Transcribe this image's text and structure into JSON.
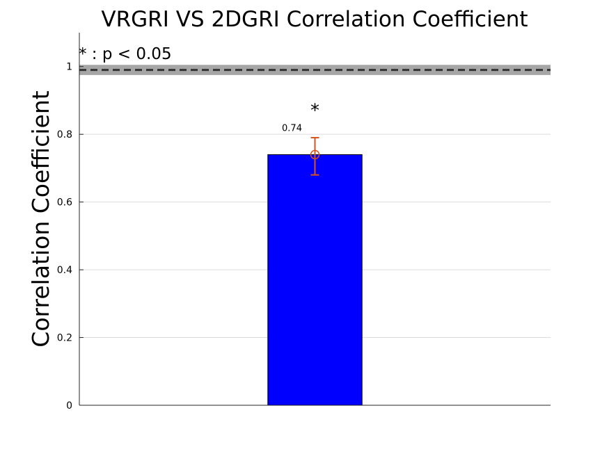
{
  "chart_data": {
    "type": "bar",
    "title": "VRGRI VS 2DGRI Correlation Coefficient",
    "xlabel": "",
    "ylabel": "Correlation Coefficient",
    "categories": [
      ""
    ],
    "values": [
      0.74
    ],
    "error_bars": [
      {
        "center": 0.74,
        "lower": 0.68,
        "upper": 0.79
      }
    ],
    "data_labels": [
      "0.74"
    ],
    "significance": [
      "*"
    ],
    "annotation": "* : p < 0.05",
    "reference_line": {
      "y": 0.99,
      "band": [
        0.975,
        1.005
      ],
      "style": "dashed"
    },
    "ylim": [
      0,
      1.1
    ],
    "yticks": [
      0,
      0.2,
      0.4,
      0.6,
      0.8,
      1
    ],
    "ytick_labels": [
      "0",
      "0.2",
      "0.4",
      "0.6",
      "0.8",
      "1"
    ],
    "grid": true,
    "colors": {
      "bar": "#0000ff",
      "bar_edge": "#000000",
      "error_bar": "#d95319",
      "reference_band": "#a6a6a6",
      "reference_line": "#333333",
      "grid": "#dcdcdc"
    }
  }
}
